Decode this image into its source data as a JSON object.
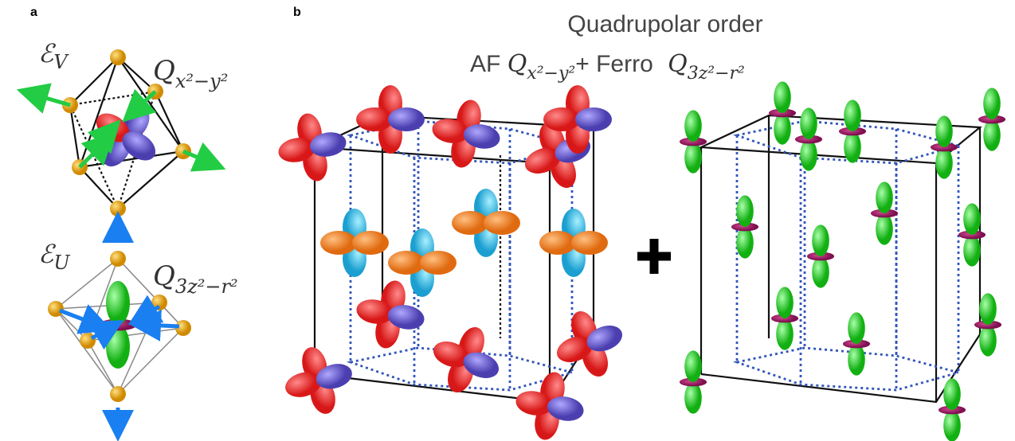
{
  "panel_a": {
    "label": "a",
    "top": {
      "mode": {
        "symbol": "ℰ",
        "subscript": "V"
      },
      "operator": {
        "symbol": "Q",
        "subscript": "x²−y²"
      }
    },
    "bottom": {
      "mode": {
        "symbol": "ℰ",
        "subscript": "U"
      },
      "operator": {
        "symbol": "Q",
        "subscript": "3z²−r²"
      }
    }
  },
  "panel_b": {
    "label": "b",
    "title": "Quadrupolar order",
    "subtitle": {
      "af_prefix": "AF",
      "af_operator": {
        "symbol": "Q",
        "subscript": "x²−y²"
      },
      "ferro_prefix": "+ Ferro",
      "ferro_operator": {
        "symbol": "Q",
        "subscript": "3z²−r²"
      }
    }
  }
}
